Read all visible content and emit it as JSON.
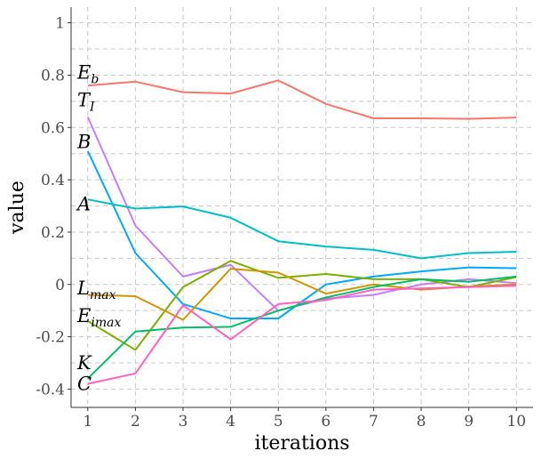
{
  "chart_data": {
    "type": "line",
    "xlabel": "iterations",
    "ylabel": "value",
    "x": [
      1,
      2,
      3,
      4,
      5,
      6,
      7,
      8,
      9,
      10
    ],
    "xlim": [
      0.65,
      10.35
    ],
    "ylim": [
      -0.47,
      1.06
    ],
    "yticks": [
      -0.4,
      -0.2,
      0,
      0.2,
      0.4,
      0.6,
      0.8,
      1
    ],
    "ytick_labels": [
      "-0.4",
      "-0.2",
      "0",
      "0.2",
      "0.4",
      "0.6",
      "0.8",
      "1"
    ],
    "xticks": [
      1,
      2,
      3,
      4,
      5,
      6,
      7,
      8,
      9,
      10
    ],
    "xtick_labels": [
      "1",
      "2",
      "3",
      "4",
      "5",
      "6",
      "7",
      "8",
      "9",
      "10"
    ],
    "grid": true,
    "legend": "none",
    "series": [
      {
        "name": "E_b",
        "color": "#F8766D",
        "values": [
          0.76,
          0.775,
          0.735,
          0.73,
          0.78,
          0.69,
          0.635,
          0.635,
          0.633,
          0.638
        ]
      },
      {
        "name": "T_I",
        "color": "#C77CFF",
        "values": [
          0.64,
          0.225,
          0.03,
          0.075,
          -0.1,
          -0.055,
          -0.04,
          0.0,
          0.02,
          0.005
        ]
      },
      {
        "name": "B",
        "color": "#00A9FF",
        "values": [
          0.51,
          0.12,
          -0.075,
          -0.13,
          -0.13,
          0.0,
          0.03,
          0.05,
          0.065,
          0.062
        ]
      },
      {
        "name": "A",
        "color": "#00BFC4",
        "values": [
          0.325,
          0.29,
          0.298,
          0.255,
          0.165,
          0.145,
          0.132,
          0.1,
          0.12,
          0.125
        ]
      },
      {
        "name": "E_imax",
        "color": "#7CAE00",
        "values": [
          -0.14,
          -0.25,
          -0.01,
          0.09,
          0.025,
          0.04,
          0.02,
          0.02,
          -0.01,
          0.028
        ]
      },
      {
        "name": "L_max",
        "color": "#CD9600",
        "values": [
          -0.04,
          -0.045,
          -0.135,
          0.06,
          0.045,
          -0.035,
          0.0,
          -0.02,
          -0.008,
          0.0
        ]
      },
      {
        "name": "K",
        "color": "#00BE67",
        "values": [
          -0.36,
          -0.18,
          -0.165,
          -0.162,
          -0.1,
          -0.05,
          -0.01,
          0.02,
          0.01,
          0.03
        ]
      },
      {
        "name": "C",
        "color": "#FF61C3",
        "values": [
          -0.38,
          -0.34,
          -0.08,
          -0.21,
          -0.075,
          -0.06,
          -0.02,
          -0.015,
          -0.01,
          -0.005
        ]
      }
    ],
    "series_labels": [
      {
        "base": "E",
        "sub": "b"
      },
      {
        "base": "T",
        "sub": "I"
      },
      {
        "base": "B",
        "sub": ""
      },
      {
        "base": "A",
        "sub": ""
      },
      {
        "base": "E",
        "sub": "imax"
      },
      {
        "base": "L",
        "sub": "max"
      },
      {
        "base": "K",
        "sub": ""
      },
      {
        "base": "C",
        "sub": ""
      }
    ]
  }
}
